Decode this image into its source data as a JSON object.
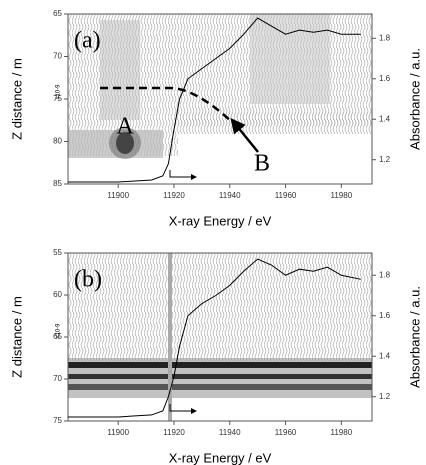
{
  "chart_data": [
    {
      "type": "line",
      "panel_label": "(a)",
      "annotations": [
        "A",
        "B"
      ],
      "exponent_label": "x10-9",
      "x_label": "X-ray Energy / eV",
      "y_label": "Z distance / m",
      "y2_label": "Absorbance / a.u.",
      "xlim": [
        11882,
        11991
      ],
      "xticks": [
        11900,
        11920,
        11940,
        11960,
        11980
      ],
      "ylim": [
        65,
        85
      ],
      "yticks": [
        65,
        70,
        75,
        80,
        85
      ],
      "y_inverted": true,
      "y2lim": [
        1.08,
        1.92
      ],
      "y2ticks": [
        1.2,
        1.4,
        1.6,
        1.8
      ],
      "x": [
        11882,
        11900,
        11912,
        11916,
        11918,
        11920,
        11922,
        11925,
        11930,
        11935,
        11940,
        11945,
        11950,
        11955,
        11960,
        11965,
        11970,
        11975,
        11980,
        11987
      ],
      "series": [
        {
          "color": "#000000",
          "axis": "y2",
          "values": [
            1.09,
            1.09,
            1.1,
            1.12,
            1.18,
            1.35,
            1.5,
            1.6,
            1.65,
            1.7,
            1.75,
            1.82,
            1.9,
            1.86,
            1.82,
            1.84,
            1.83,
            1.84,
            1.82,
            1.82
          ]
        }
      ]
    },
    {
      "type": "line",
      "panel_label": "(b)",
      "exponent_label": "x10-9",
      "x_label": "X-ray Energy / eV",
      "y_label": "Z distance / m",
      "y2_label": "Absorbance / a.u.",
      "xlim": [
        11882,
        11991
      ],
      "xticks": [
        11900,
        11920,
        11940,
        11960,
        11980
      ],
      "ylim": [
        55,
        75
      ],
      "yticks": [
        55,
        60,
        65,
        70,
        75
      ],
      "y_inverted": true,
      "y2lim": [
        1.08,
        1.91
      ],
      "y2ticks": [
        1.2,
        1.4,
        1.6,
        1.8
      ],
      "x": [
        11882,
        11900,
        11912,
        11916,
        11918,
        11920,
        11922,
        11925,
        11930,
        11935,
        11940,
        11945,
        11950,
        11955,
        11960,
        11965,
        11970,
        11975,
        11980,
        11987
      ],
      "series": [
        {
          "color": "#000000",
          "axis": "y2",
          "values": [
            1.1,
            1.1,
            1.11,
            1.13,
            1.2,
            1.3,
            1.45,
            1.6,
            1.66,
            1.7,
            1.75,
            1.82,
            1.88,
            1.85,
            1.8,
            1.83,
            1.82,
            1.84,
            1.8,
            1.78
          ]
        }
      ]
    }
  ]
}
